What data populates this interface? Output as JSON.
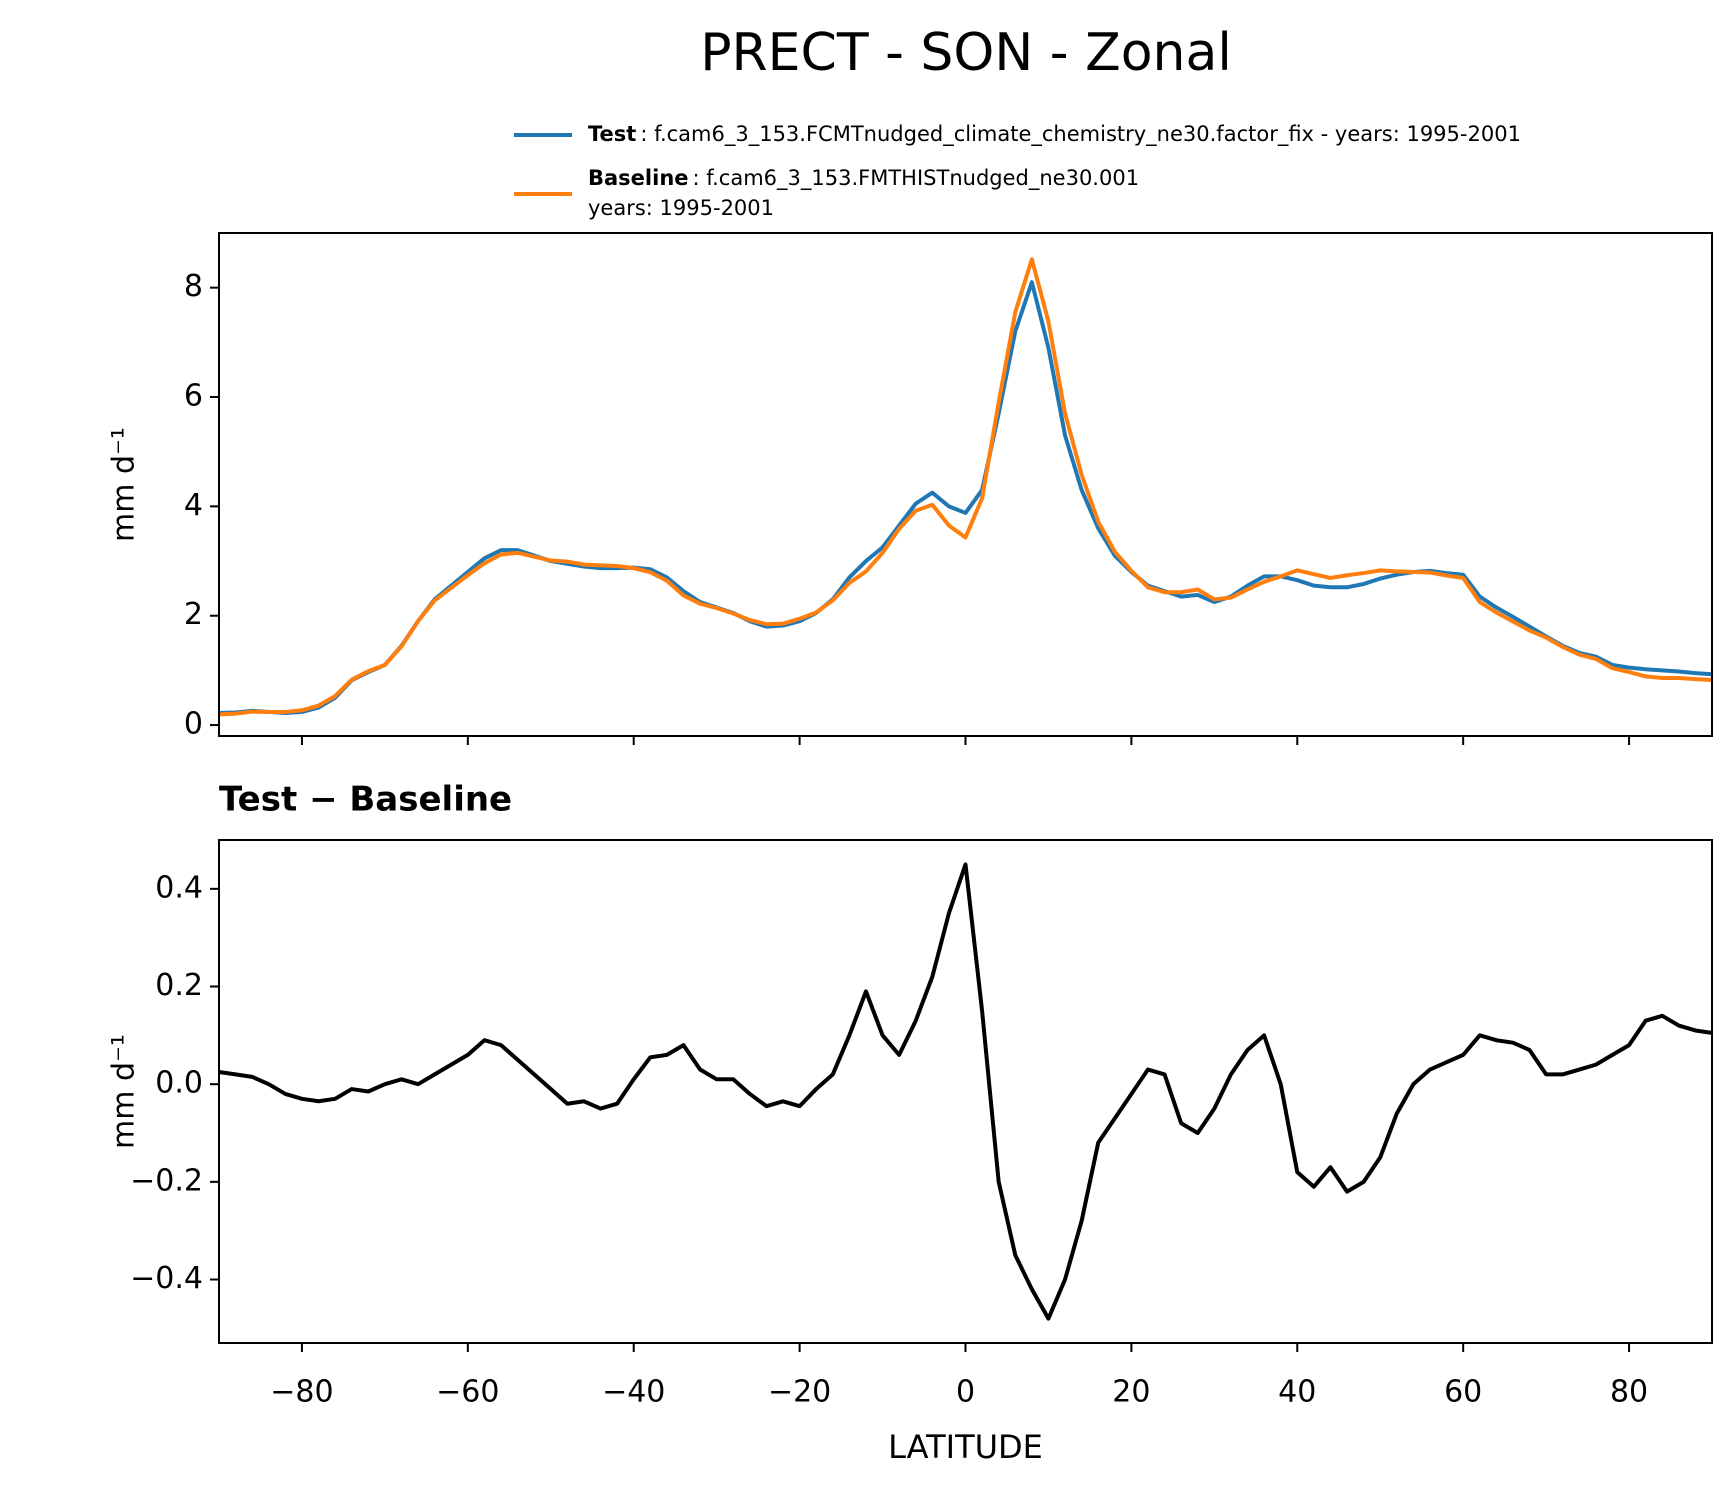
{
  "title": "PRECT - SON - Zonal",
  "chart_data": [
    {
      "type": "line",
      "ylabel": "mm d⁻¹",
      "x": [
        -90,
        -88,
        -86,
        -84,
        -82,
        -80,
        -78,
        -76,
        -74,
        -72,
        -70,
        -68,
        -66,
        -64,
        -62,
        -60,
        -58,
        -56,
        -54,
        -52,
        -50,
        -48,
        -46,
        -44,
        -42,
        -40,
        -38,
        -36,
        -34,
        -32,
        -30,
        -28,
        -26,
        -24,
        -22,
        -20,
        -18,
        -16,
        -14,
        -12,
        -10,
        -8,
        -6,
        -4,
        -2,
        0,
        2,
        4,
        6,
        8,
        10,
        12,
        14,
        16,
        18,
        20,
        22,
        24,
        26,
        28,
        30,
        32,
        34,
        36,
        38,
        40,
        42,
        44,
        46,
        48,
        50,
        52,
        54,
        56,
        58,
        60,
        62,
        64,
        66,
        68,
        70,
        72,
        74,
        76,
        78,
        80,
        82,
        84,
        86,
        88,
        90
      ],
      "series": [
        {
          "name": "Test",
          "label": ": f.cam6_3_153.FCMTnudged_climate_chemistry_ne30.factor_fix - years: 1995-2001",
          "color": "#1f77b4",
          "values": [
            0.22,
            0.23,
            0.26,
            0.24,
            0.22,
            0.24,
            0.32,
            0.5,
            0.82,
            0.97,
            1.1,
            1.45,
            1.9,
            2.3,
            2.55,
            2.8,
            3.05,
            3.2,
            3.2,
            3.1,
            3.0,
            2.95,
            2.9,
            2.87,
            2.87,
            2.88,
            2.85,
            2.7,
            2.45,
            2.25,
            2.15,
            2.05,
            1.9,
            1.8,
            1.82,
            1.9,
            2.05,
            2.3,
            2.7,
            3.0,
            3.25,
            3.65,
            4.05,
            4.25,
            4.0,
            3.88,
            4.3,
            5.7,
            7.2,
            8.1,
            6.9,
            5.3,
            4.3,
            3.6,
            3.1,
            2.8,
            2.55,
            2.45,
            2.35,
            2.38,
            2.25,
            2.35,
            2.55,
            2.72,
            2.72,
            2.65,
            2.55,
            2.52,
            2.52,
            2.58,
            2.68,
            2.75,
            2.8,
            2.82,
            2.78,
            2.75,
            2.35,
            2.15,
            1.98,
            1.8,
            1.62,
            1.45,
            1.32,
            1.25,
            1.1,
            1.05,
            1.02,
            1.0,
            0.98,
            0.95,
            0.93
          ]
        },
        {
          "name": "Baseline",
          "label": [
            ": f.cam6_3_153.FMTHISTnudged_ne30.001",
            "years: 1995-2001"
          ],
          "color": "#ff7f0e",
          "values": [
            0.195,
            0.21,
            0.245,
            0.24,
            0.24,
            0.27,
            0.355,
            0.53,
            0.83,
            0.985,
            1.1,
            1.44,
            1.9,
            2.28,
            2.51,
            2.74,
            2.96,
            3.12,
            3.15,
            3.08,
            3.01,
            2.99,
            2.935,
            2.92,
            2.91,
            2.87,
            2.795,
            2.64,
            2.37,
            2.22,
            2.14,
            2.04,
            1.92,
            1.845,
            1.855,
            1.945,
            2.06,
            2.28,
            2.6,
            2.81,
            3.15,
            3.59,
            3.92,
            4.03,
            3.65,
            3.43,
            4.15,
            5.9,
            7.55,
            8.52,
            7.38,
            5.7,
            4.58,
            3.72,
            3.17,
            2.82,
            2.52,
            2.43,
            2.43,
            2.48,
            2.3,
            2.33,
            2.48,
            2.62,
            2.72,
            2.83,
            2.76,
            2.69,
            2.74,
            2.78,
            2.83,
            2.81,
            2.8,
            2.79,
            2.735,
            2.69,
            2.25,
            2.06,
            1.895,
            1.73,
            1.6,
            1.43,
            1.29,
            1.21,
            1.04,
            0.97,
            0.89,
            0.86,
            0.86,
            0.84,
            0.825
          ]
        }
      ],
      "xlim": [
        -90,
        90
      ],
      "xticks": [
        -80,
        -60,
        -40,
        -20,
        0,
        20,
        40,
        60,
        80
      ],
      "ylim": [
        -0.2,
        9.0
      ],
      "yticks": [
        0,
        2,
        4,
        6,
        8
      ]
    },
    {
      "type": "line",
      "title": "Test − Baseline",
      "ylabel": "mm d⁻¹",
      "xlabel": "LATITUDE",
      "x": [
        -90,
        -88,
        -86,
        -84,
        -82,
        -80,
        -78,
        -76,
        -74,
        -72,
        -70,
        -68,
        -66,
        -64,
        -62,
        -60,
        -58,
        -56,
        -54,
        -52,
        -50,
        -48,
        -46,
        -44,
        -42,
        -40,
        -38,
        -36,
        -34,
        -32,
        -30,
        -28,
        -26,
        -24,
        -22,
        -20,
        -18,
        -16,
        -14,
        -12,
        -10,
        -8,
        -6,
        -4,
        -2,
        0,
        2,
        4,
        6,
        8,
        10,
        12,
        14,
        16,
        18,
        20,
        22,
        24,
        26,
        28,
        30,
        32,
        34,
        36,
        38,
        40,
        42,
        44,
        46,
        48,
        50,
        52,
        54,
        56,
        58,
        60,
        62,
        64,
        66,
        68,
        70,
        72,
        74,
        76,
        78,
        80,
        82,
        84,
        86,
        88,
        90
      ],
      "series": [
        {
          "color": "#000000",
          "values": [
            0.025,
            0.02,
            0.015,
            0.0,
            -0.02,
            -0.03,
            -0.035,
            -0.03,
            -0.01,
            -0.015,
            0.0,
            0.01,
            0.0,
            0.02,
            0.04,
            0.06,
            0.09,
            0.08,
            0.05,
            0.02,
            -0.01,
            -0.04,
            -0.035,
            -0.05,
            -0.04,
            0.01,
            0.055,
            0.06,
            0.08,
            0.03,
            0.01,
            0.01,
            -0.02,
            -0.045,
            -0.035,
            -0.045,
            -0.01,
            0.02,
            0.1,
            0.19,
            0.1,
            0.06,
            0.13,
            0.22,
            0.35,
            0.45,
            0.15,
            -0.2,
            -0.35,
            -0.42,
            -0.48,
            -0.4,
            -0.28,
            -0.12,
            -0.07,
            -0.02,
            0.03,
            0.02,
            -0.08,
            -0.1,
            -0.05,
            0.02,
            0.07,
            0.1,
            0.0,
            -0.18,
            -0.21,
            -0.17,
            -0.22,
            -0.2,
            -0.15,
            -0.06,
            0.0,
            0.03,
            0.045,
            0.06,
            0.1,
            0.09,
            0.085,
            0.07,
            0.02,
            0.02,
            0.03,
            0.04,
            0.06,
            0.08,
            0.13,
            0.14,
            0.12,
            0.11,
            0.105
          ]
        }
      ],
      "xlim": [
        -90,
        90
      ],
      "xticks": [
        {
          "value": -80,
          "label": "−80"
        },
        {
          "value": -60,
          "label": "−60"
        },
        {
          "value": -40,
          "label": "−40"
        },
        {
          "value": -20,
          "label": "−20"
        },
        0,
        20,
        40,
        60,
        80
      ],
      "ylim": [
        -0.53,
        0.5
      ],
      "yticks": [
        {
          "value": -0.4,
          "label": "−0.4"
        },
        {
          "value": -0.2,
          "label": "−0.2"
        },
        {
          "value": 0,
          "label": "0.0"
        },
        {
          "value": 0.2,
          "label": "0.2"
        },
        {
          "value": 0.4,
          "label": "0.4"
        }
      ]
    }
  ]
}
